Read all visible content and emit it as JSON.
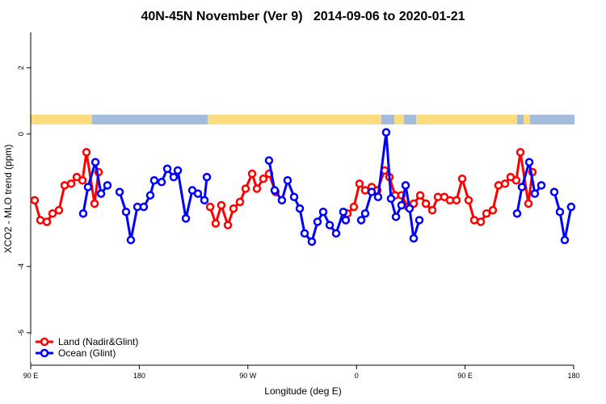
{
  "chart_data": {
    "type": "line",
    "title": "40N-45N November (Ver 9)   2014-09-06 to 2020-01-21",
    "xlabel": "Longitude (deg E)",
    "ylabel": "XCO2 - MLO trend (ppm)",
    "xlim": [
      90,
      540
    ],
    "xticks": [
      {
        "value": 90,
        "label": "90 E"
      },
      180,
      {
        "value": 270,
        "label": "90 W"
      },
      {
        "value": 360,
        "label": "0"
      },
      {
        "value": 450,
        "label": "90 E"
      },
      {
        "value": 540,
        "label": "180"
      }
    ],
    "ylim": [
      -6.98,
      3.07
    ],
    "yticks": [
      -6,
      -4,
      0,
      2
    ],
    "legend": "bottom-left",
    "series": [
      {
        "name": "Land (Nadir&Glint)",
        "color": "#ff0000",
        "x": [
          93.3,
          98.0,
          103.4,
          108.1,
          113.4,
          118.1,
          123.5,
          128.2,
          132.9,
          136.2,
          142.9,
          146.2,
          null,
          238.7,
          243.3,
          248.0,
          253.4,
          258.1,
          263.4,
          268.1,
          273.5,
          277.5,
          282.8,
          287.5,
          292.9,
          null,
          352.5,
          357.8,
          362.5,
          367.2,
          372.6,
          377.3,
          383.3,
          387.3,
          392.0,
          397.3,
          402.7,
          407.4,
          412.8,
          417.5,
          422.8,
          427.5,
          432.8,
          437.5,
          442.9,
          447.6,
          452.9,
          457.6,
          463.0,
          467.7,
          473.0,
          477.7,
          483.1,
          487.7,
          492.4,
          495.8,
          502.5,
          505.8
        ],
        "values": [
          -2.0,
          -2.6,
          -2.65,
          -2.4,
          -2.3,
          -1.55,
          -1.5,
          -1.3,
          -1.4,
          -0.55,
          -2.1,
          -1.15,
          null,
          -2.2,
          -2.7,
          -2.15,
          -2.75,
          -2.25,
          -2.05,
          -1.65,
          -1.2,
          -1.65,
          -1.35,
          -1.2,
          -1.75,
          null,
          -2.4,
          -2.2,
          -1.5,
          -1.7,
          -1.6,
          -1.7,
          -1.1,
          -1.3,
          -1.85,
          -1.85,
          -2.2,
          -2.1,
          -1.85,
          -2.1,
          -2.3,
          -1.9,
          -1.9,
          -2.0,
          -2.0,
          -1.35,
          -2.0,
          -2.6,
          -2.65,
          -2.4,
          -2.3,
          -1.55,
          -1.5,
          -1.3,
          -1.4,
          -0.55,
          -2.1,
          -1.15
        ]
      },
      {
        "name": "Ocean (Glint)",
        "color": "#0000ff",
        "x": [
          133.5,
          137.5,
          143.6,
          148.3,
          153.6,
          null,
          163.7,
          169.0,
          173.0,
          178.4,
          183.7,
          189.1,
          192.4,
          198.5,
          203.2,
          208.5,
          211.9,
          218.6,
          223.9,
          228.6,
          234.0,
          236.0,
          null,
          287.5,
          292.2,
          298.2,
          302.9,
          308.3,
          313.0,
          317.0,
          323.0,
          327.7,
          332.4,
          337.8,
          343.1,
          349.1,
          351.1,
          null,
          363.9,
          367.2,
          372.6,
          377.9,
          384.6,
          388.6,
          392.7,
          397.3,
          400.7,
          404.0,
          407.4,
          412.1,
          null,
          493.1,
          497.1,
          503.2,
          507.8,
          513.2,
          null,
          523.9,
          528.6,
          532.6,
          537.9
        ],
        "values": [
          -2.4,
          -1.6,
          -0.85,
          -1.8,
          -1.55,
          null,
          -1.75,
          -2.35,
          -3.2,
          -2.2,
          -2.2,
          -1.85,
          -1.4,
          -1.45,
          -1.05,
          -1.3,
          -1.1,
          -2.55,
          -1.7,
          -1.8,
          -2.0,
          -1.3,
          null,
          -0.8,
          -1.7,
          -2.0,
          -1.4,
          -1.9,
          -2.25,
          -3.0,
          -3.25,
          -2.65,
          -2.35,
          -2.75,
          -3.0,
          -2.35,
          -2.6,
          null,
          -2.6,
          -2.4,
          -1.75,
          -1.9,
          0.05,
          -1.95,
          -2.5,
          -2.15,
          -1.55,
          -2.25,
          -3.15,
          -2.6,
          null,
          -2.4,
          -1.6,
          -0.85,
          -1.8,
          -1.55,
          null,
          -1.75,
          -2.35,
          -3.2,
          -2.2
        ]
      }
    ]
  }
}
